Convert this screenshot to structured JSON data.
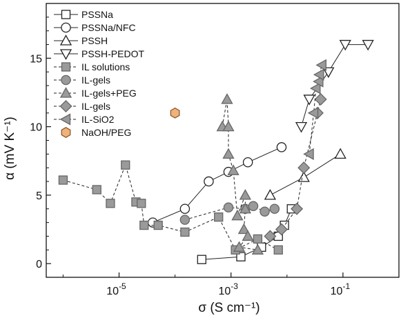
{
  "chart_data": {
    "type": "scatter",
    "title": "",
    "xlabel": "σ (S cm⁻¹)",
    "ylabel": "α (mV K⁻¹)",
    "xscale": "log",
    "xlim": [
      5e-07,
      1.0
    ],
    "ylim": [
      -1,
      19
    ],
    "xticks": [
      {
        "value": 1e-05,
        "base": "10",
        "exp": "-5"
      },
      {
        "value": 0.001,
        "base": "10",
        "exp": "-3"
      },
      {
        "value": 0.1,
        "base": "10",
        "exp": "-1"
      }
    ],
    "yticks": [
      0,
      5,
      10,
      15
    ],
    "grid": false,
    "legend_position": "top-left",
    "series": [
      {
        "name": "PSSNa",
        "marker": "square",
        "line": "solid",
        "fill": "#ffffff",
        "stroke": "#222222",
        "points": [
          [
            0.0003,
            0.3
          ],
          [
            0.0015,
            0.5
          ],
          [
            0.0035,
            1.2
          ],
          [
            0.007,
            2.0
          ],
          [
            0.009,
            2.8
          ],
          [
            0.012,
            4.0
          ]
        ]
      },
      {
        "name": "PSSNa/NFC",
        "marker": "circle",
        "line": "solid",
        "fill": "#ffffff",
        "stroke": "#222222",
        "points": [
          [
            4e-05,
            3.0
          ],
          [
            0.00015,
            4.0
          ],
          [
            0.0004,
            6.0
          ],
          [
            0.0009,
            6.7
          ],
          [
            0.002,
            7.4
          ],
          [
            0.008,
            8.5
          ]
        ]
      },
      {
        "name": "PSSH",
        "marker": "triangle-up",
        "line": "solid",
        "fill": "#ffffff",
        "stroke": "#222222",
        "points": [
          [
            0.005,
            5.0
          ],
          [
            0.02,
            6.3
          ],
          [
            0.09,
            8.0
          ]
        ]
      },
      {
        "name": "PSSH-PEDOT",
        "marker": "triangle-down",
        "line": "solid",
        "fill": "#ffffff",
        "stroke": "#222222",
        "points": [
          [
            0.018,
            10.0
          ],
          [
            0.025,
            12.0
          ],
          [
            0.055,
            14.0
          ],
          [
            0.11,
            16.0
          ],
          [
            0.28,
            16.0
          ]
        ]
      },
      {
        "name": "IL solutions",
        "marker": "square",
        "line": "dashed",
        "fill": "#9a9a9a",
        "stroke": "#666666",
        "points": [
          [
            1e-06,
            6.1
          ],
          [
            4e-06,
            5.4
          ],
          [
            7e-06,
            4.4
          ],
          [
            1.3e-05,
            7.2
          ],
          [
            2e-05,
            4.5
          ],
          [
            2.5e-05,
            4.4
          ],
          [
            2.8e-05,
            2.8
          ],
          [
            5e-05,
            2.8
          ],
          [
            0.00015,
            2.3
          ],
          [
            0.0006,
            3.4
          ],
          [
            0.0012,
            1.0
          ],
          [
            0.003,
            1.8
          ],
          [
            0.007,
            1.0
          ]
        ]
      },
      {
        "name": "IL-gels",
        "marker": "circle",
        "line": "dashed",
        "fill": "#9a9a9a",
        "stroke": "#666666",
        "points": [
          [
            0.00015,
            3.2
          ],
          [
            0.0009,
            4.1
          ],
          [
            0.0018,
            4.0
          ],
          [
            0.0025,
            4.2
          ],
          [
            0.004,
            3.8
          ],
          [
            0.006,
            4.0
          ]
        ]
      },
      {
        "name": "IL-gels+PEG",
        "marker": "triangle-up",
        "line": "dashed",
        "fill": "#9a9a9a",
        "stroke": "#666666",
        "points": [
          [
            0.0007,
            10.0
          ],
          [
            0.00085,
            12.0
          ],
          [
            0.0009,
            10.0
          ],
          [
            0.0009,
            8.0
          ],
          [
            0.0011,
            6.8
          ],
          [
            0.0013,
            3.5
          ],
          [
            0.0018,
            5.0
          ],
          [
            0.0018,
            4.0
          ],
          [
            0.0017,
            2.5
          ],
          [
            0.002,
            2.0
          ],
          [
            0.0014,
            1.2
          ],
          [
            0.003,
            1.0
          ]
        ]
      },
      {
        "name": "IL-gels",
        "marker": "diamond",
        "line": "dashed",
        "fill": "#9a9a9a",
        "stroke": "#666666",
        "points": [
          [
            0.005,
            2.0
          ],
          [
            0.008,
            2.5
          ],
          [
            0.015,
            4.0
          ],
          [
            0.02,
            7.0
          ],
          [
            0.035,
            11.0
          ],
          [
            0.04,
            12.0
          ]
        ]
      },
      {
        "name": "IL-SiO2",
        "marker": "triangle-left",
        "line": "dashed",
        "fill": "#9a9a9a",
        "stroke": "#666666",
        "points": [
          [
            0.025,
            8.0
          ],
          [
            0.03,
            11.0
          ],
          [
            0.033,
            12.8
          ],
          [
            0.037,
            13.3
          ],
          [
            0.042,
            14.5
          ],
          [
            0.038,
            13.8
          ]
        ]
      },
      {
        "name": "NaOH/PEG",
        "marker": "hexagon",
        "line": "none",
        "fill": "#f0b27a",
        "stroke": "#8a5a2a",
        "points": [
          [
            0.0001,
            11.0
          ]
        ]
      }
    ]
  }
}
